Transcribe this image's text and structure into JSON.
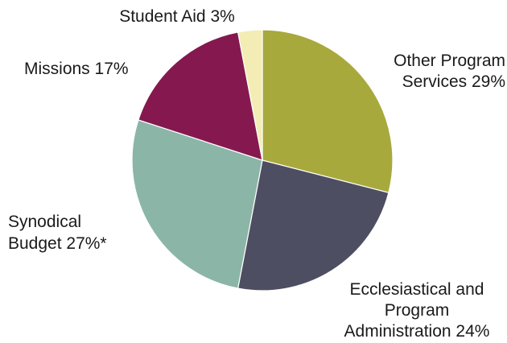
{
  "chart_data": {
    "type": "pie",
    "title": "",
    "start_angle_deg": 0,
    "direction": "clockwise",
    "slices": [
      {
        "name": "Other Program Services",
        "value": 29,
        "color": "#a7a93c",
        "label_lines": [
          "Other Program",
          "Services 29%"
        ]
      },
      {
        "name": "Ecclesiastical and Program Administration",
        "value": 24,
        "color": "#4d4e61",
        "label_lines": [
          "Ecclesiastical and",
          "Program",
          "Administration 24%"
        ]
      },
      {
        "name": "Synodical Budget",
        "value": 27,
        "color": "#8bb6a7",
        "label_lines": [
          "Synodical",
          "Budget 27%*"
        ]
      },
      {
        "name": "Missions",
        "value": 17,
        "color": "#85194f",
        "label_lines": [
          "Missions 17%"
        ]
      },
      {
        "name": "Student Aid",
        "value": 3,
        "color": "#f3edb5",
        "label_lines": [
          "Student Aid 3%"
        ]
      }
    ]
  }
}
